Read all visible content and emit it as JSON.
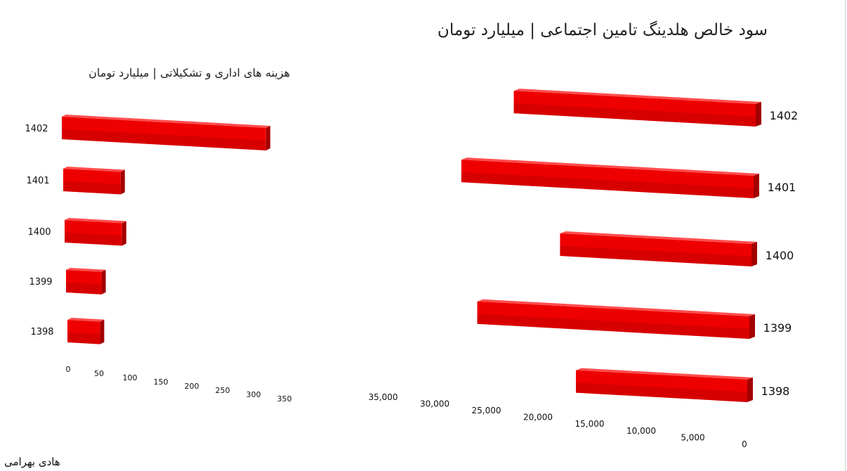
{
  "credit": "هادی بهرامی",
  "chart_data": [
    {
      "type": "bar",
      "orientation": "horizontal",
      "title": "سود خالص هلدینگ تامین اجتماعی | میلیارد تومان",
      "categories": [
        "1402",
        "1401",
        "1400",
        "1399",
        "1398"
      ],
      "values": [
        24000,
        29000,
        19000,
        27000,
        17000
      ],
      "xlim": [
        0,
        35000
      ],
      "x_reversed": true,
      "tick_labels": [
        "0",
        "5,000",
        "10,000",
        "15,000",
        "20,000",
        "25,000",
        "30,000",
        "35,000"
      ],
      "grid": false,
      "color": "#ff0000"
    },
    {
      "type": "bar",
      "orientation": "horizontal",
      "title": "هزینه های اداری و تشکیلاتی | میلیارد تومان",
      "categories": [
        "1402",
        "1401",
        "1400",
        "1399",
        "1398"
      ],
      "values": [
        345,
        97,
        97,
        60,
        55
      ],
      "xlim": [
        0,
        350
      ],
      "tick_labels": [
        "0",
        "50",
        "100",
        "150",
        "200",
        "250",
        "300",
        "350"
      ],
      "grid": false,
      "color": "#ff0000"
    }
  ]
}
